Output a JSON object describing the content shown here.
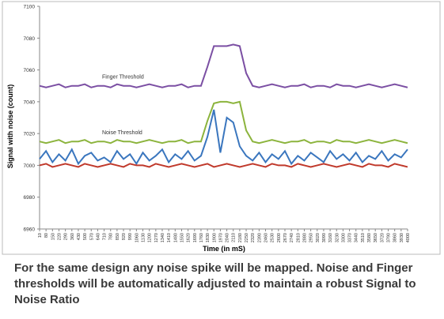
{
  "chart_data": {
    "type": "line",
    "x_label": "Time (in mS)",
    "y_label": "Signal with noise (count)",
    "categories": [
      "10",
      "80",
      "150",
      "220",
      "290",
      "360",
      "430",
      "500",
      "570",
      "640",
      "710",
      "780",
      "850",
      "920",
      "990",
      "1060",
      "1130",
      "1200",
      "1270",
      "1340",
      "1410",
      "1480",
      "1550",
      "1620",
      "1690",
      "1760",
      "1830",
      "1900",
      "1970",
      "2040",
      "2110",
      "2180",
      "2250",
      "2320",
      "2390",
      "2460",
      "2530",
      "2600",
      "2670",
      "2740",
      "2810",
      "2880",
      "2950",
      "3020",
      "3090",
      "3160",
      "3230",
      "3300",
      "3370",
      "3440",
      "3510",
      "3580",
      "3650",
      "3720",
      "3790",
      "3860",
      "3930",
      "4000"
    ],
    "ylim": [
      6960,
      7100
    ],
    "yticks": [
      6960,
      6980,
      7000,
      7020,
      7040,
      7060,
      7080,
      7100
    ],
    "series": [
      {
        "color": "#7b4fa3",
        "values": [
          7050,
          7049,
          7050,
          7051,
          7049,
          7050,
          7050,
          7051,
          7049,
          7050,
          7050,
          7049,
          7051,
          7050,
          7050,
          7049,
          7050,
          7051,
          7050,
          7049,
          7050,
          7050,
          7051,
          7049,
          7050,
          7050,
          7062,
          7075,
          7075,
          7075,
          7076,
          7075,
          7058,
          7050,
          7049,
          7050,
          7051,
          7050,
          7049,
          7050,
          7050,
          7051,
          7049,
          7050,
          7050,
          7049,
          7051,
          7050,
          7050,
          7049,
          7050,
          7051,
          7050,
          7049,
          7050,
          7051,
          7050,
          7049
        ]
      },
      {
        "color": "#8cb43d",
        "values": [
          7015,
          7014,
          7015,
          7016,
          7014,
          7015,
          7015,
          7016,
          7014,
          7015,
          7015,
          7014,
          7016,
          7015,
          7015,
          7014,
          7015,
          7016,
          7015,
          7014,
          7015,
          7015,
          7016,
          7014,
          7015,
          7015,
          7028,
          7039,
          7040,
          7040,
          7039,
          7040,
          7022,
          7015,
          7014,
          7015,
          7016,
          7015,
          7014,
          7015,
          7015,
          7016,
          7014,
          7015,
          7015,
          7014,
          7016,
          7015,
          7015,
          7014,
          7015,
          7016,
          7015,
          7014,
          7015,
          7016,
          7015,
          7014
        ]
      },
      {
        "color": "#3a76be",
        "values": [
          7004,
          7009,
          7002,
          7007,
          7003,
          7010,
          7001,
          7006,
          7008,
          7003,
          7005,
          7002,
          7009,
          7004,
          7007,
          7001,
          7008,
          7003,
          7006,
          7010,
          7002,
          7007,
          7004,
          7009,
          7003,
          7006,
          7018,
          7035,
          7008,
          7030,
          7027,
          7012,
          7006,
          7003,
          7008,
          7002,
          7007,
          7004,
          7009,
          7001,
          7006,
          7003,
          7008,
          7005,
          7002,
          7009,
          7004,
          7007,
          7003,
          7008,
          7002,
          7006,
          7004,
          7009,
          7003,
          7007,
          7005,
          7010
        ]
      },
      {
        "color": "#c0392b",
        "values": [
          7000,
          7001,
          6999,
          7000,
          7001,
          7000,
          6999,
          7001,
          7000,
          6999,
          7000,
          7001,
          7000,
          6999,
          7001,
          7000,
          7000,
          6999,
          7001,
          7000,
          6999,
          7000,
          7001,
          7000,
          6999,
          7000,
          7001,
          6999,
          7000,
          7001,
          7000,
          6999,
          7000,
          7001,
          7000,
          6999,
          7001,
          7000,
          7000,
          6999,
          7001,
          7000,
          6999,
          7000,
          7001,
          7000,
          6999,
          7000,
          7001,
          7000,
          6999,
          7001,
          7000,
          7000,
          6999,
          7001,
          7000,
          6999
        ]
      }
    ],
    "annotations": [
      {
        "text": "Finger Threshold",
        "x": "430",
        "y": 7053
      },
      {
        "text": "Noise Threshold",
        "x": "430",
        "y": 7018
      }
    ]
  },
  "caption": "For the same design any noise spike will be mapped. Noise and Finger thresholds will be automatically adjusted to maintain a robust Signal to Noise Ratio"
}
